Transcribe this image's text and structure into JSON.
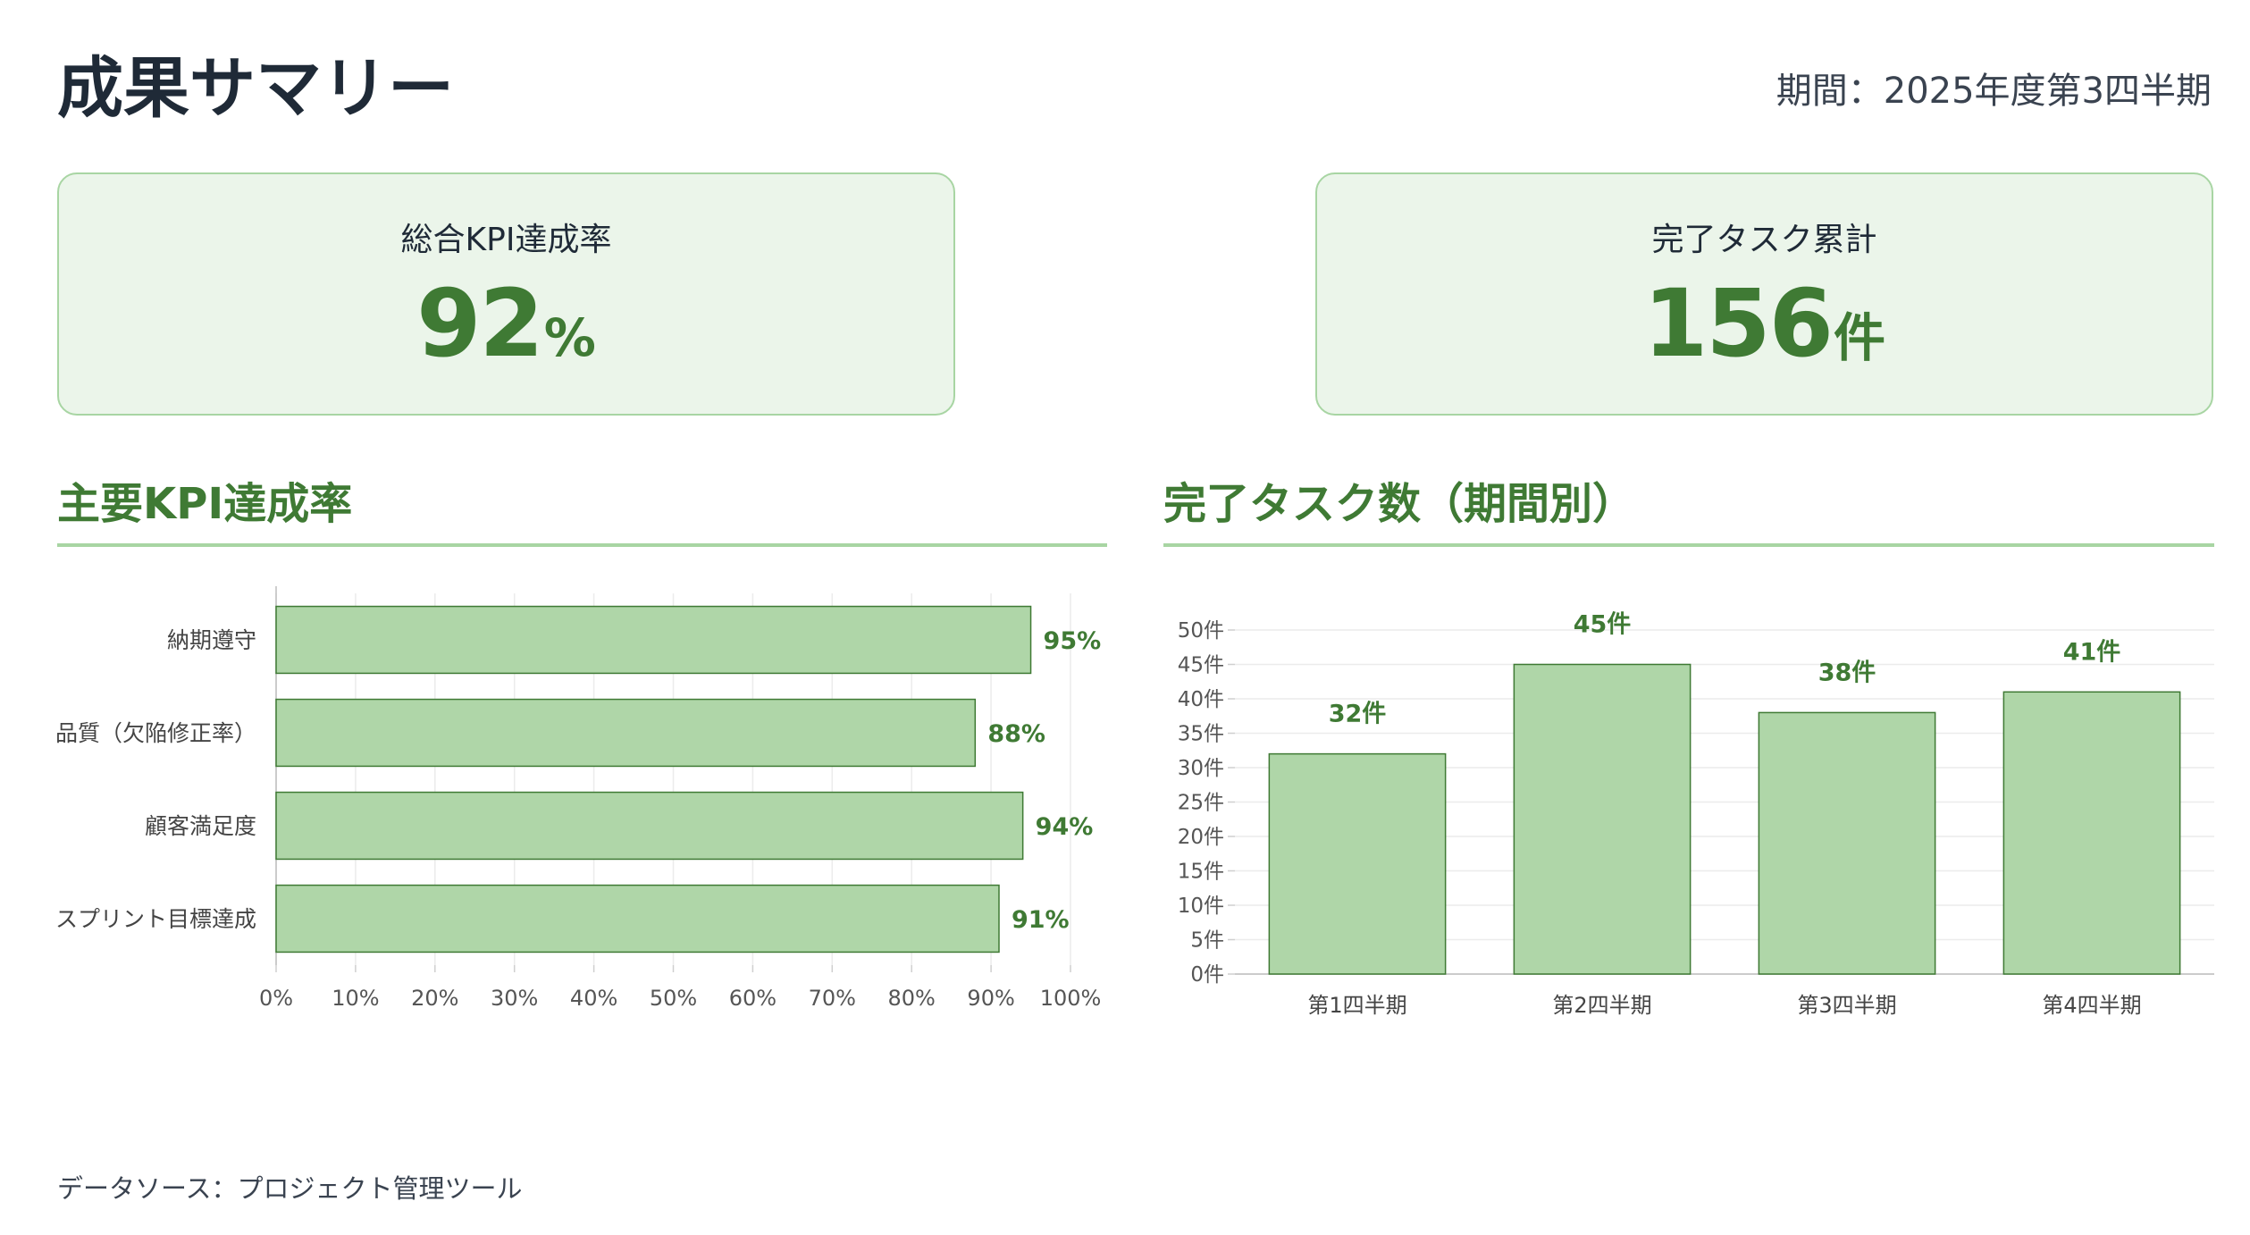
{
  "header": {
    "title": "成果サマリー",
    "period": "期間：2025年度第3四半期"
  },
  "kpi_cards": [
    {
      "label": "総合KPI達成率",
      "value": "92",
      "unit": "%"
    },
    {
      "label": "完了タスク累計",
      "value": "156",
      "unit": "件"
    }
  ],
  "sections": {
    "kpi_chart_title": "主要KPI達成率",
    "task_chart_title": "完了タスク数（期間別）"
  },
  "colors": {
    "accent": "#3f7a34",
    "bar_fill": "#afd6a8",
    "bar_stroke": "#3f7a34",
    "card_bg": "#ebf5ea",
    "card_border": "#a8d5a3"
  },
  "chart_data": [
    {
      "type": "bar",
      "orientation": "horizontal",
      "categories": [
        "納期遵守",
        "品質（欠陥修正率）",
        "顧客満足度",
        "スプリント目標達成"
      ],
      "values": [
        95,
        88,
        94,
        91
      ],
      "data_labels": [
        "95%",
        "88%",
        "94%",
        "91%"
      ],
      "xlim": [
        0,
        100
      ],
      "x_ticks": [
        "0%",
        "10%",
        "20%",
        "30%",
        "40%",
        "50%",
        "60%",
        "70%",
        "80%",
        "90%",
        "100%"
      ],
      "grid": true
    },
    {
      "type": "bar",
      "orientation": "vertical",
      "categories": [
        "第1四半期",
        "第2四半期",
        "第3四半期",
        "第4四半期"
      ],
      "values": [
        32,
        45,
        38,
        41
      ],
      "data_labels": [
        "32件",
        "45件",
        "38件",
        "41件"
      ],
      "ylim": [
        0,
        50
      ],
      "y_ticks": [
        "0件",
        "5件",
        "10件",
        "15件",
        "20件",
        "25件",
        "30件",
        "35件",
        "40件",
        "45件",
        "50件"
      ],
      "grid": true
    }
  ],
  "footer": {
    "source": "データソース：プロジェクト管理ツール"
  }
}
